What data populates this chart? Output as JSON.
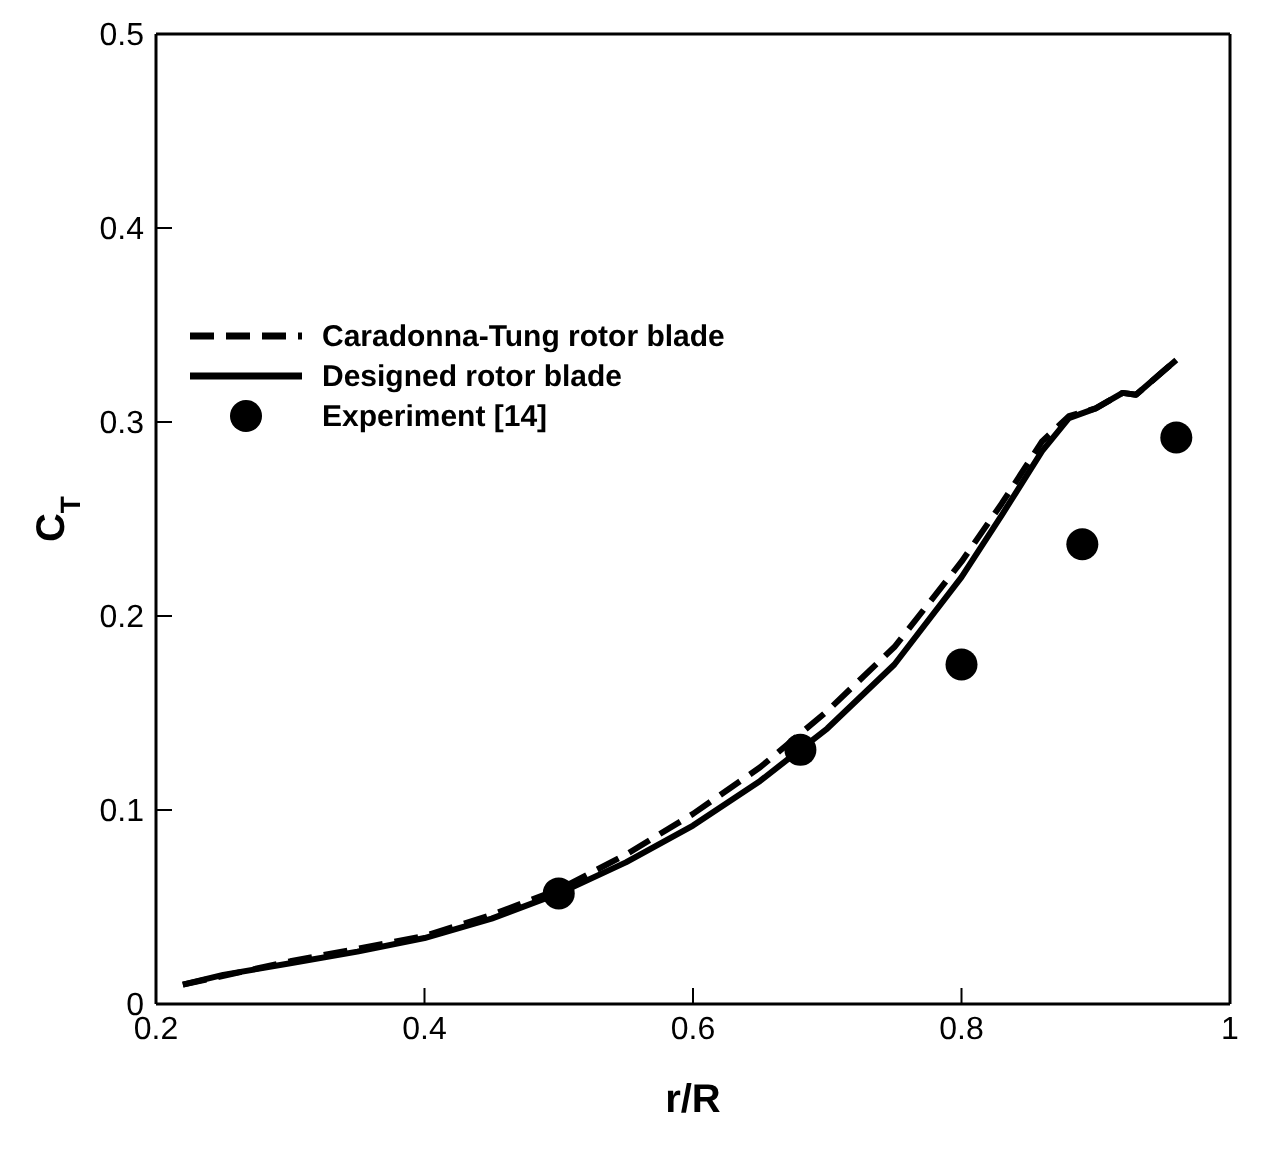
{
  "chart_data": {
    "type": "line",
    "xlabel": "r/R",
    "ylabel": "C$_{T}$",
    "xlim": [
      0.2,
      1
    ],
    "ylim": [
      0,
      0.5
    ],
    "xticks": [
      0.2,
      0.4,
      0.6,
      0.8,
      1
    ],
    "yticks": [
      0,
      0.1,
      0.2,
      0.3,
      0.4,
      0.5
    ],
    "legend": "left",
    "series": [
      {
        "name": "Caradonna-Tung rotor blade",
        "color": "#000000",
        "line_style": "dashed",
        "marker": "none",
        "x": [
          0.22,
          0.3,
          0.4,
          0.45,
          0.5,
          0.55,
          0.6,
          0.65,
          0.7,
          0.75,
          0.8,
          0.83,
          0.86,
          0.88,
          0.9,
          0.92,
          0.93,
          0.95,
          0.96
        ],
        "values": [
          0.01,
          0.022,
          0.035,
          0.046,
          0.059,
          0.077,
          0.098,
          0.122,
          0.151,
          0.184,
          0.228,
          0.258,
          0.29,
          0.303,
          0.307,
          0.315,
          0.314,
          0.326,
          0.332
        ]
      },
      {
        "name": "Designed rotor blade",
        "color": "#000000",
        "line_style": "solid",
        "marker": "none",
        "x": [
          0.22,
          0.25,
          0.3,
          0.35,
          0.4,
          0.45,
          0.5,
          0.55,
          0.6,
          0.65,
          0.7,
          0.75,
          0.8,
          0.83,
          0.86,
          0.88,
          0.9,
          0.92,
          0.93,
          0.95,
          0.96
        ],
        "values": [
          0.01,
          0.015,
          0.021,
          0.027,
          0.034,
          0.044,
          0.057,
          0.073,
          0.092,
          0.115,
          0.142,
          0.175,
          0.22,
          0.252,
          0.285,
          0.302,
          0.307,
          0.315,
          0.314,
          0.326,
          0.332
        ]
      },
      {
        "name": "Experiment [14]",
        "type": "scatter",
        "color": "#000000",
        "marker": "circle",
        "x": [
          0.5,
          0.68,
          0.8,
          0.89,
          0.96
        ],
        "values": [
          0.057,
          0.131,
          0.175,
          0.237,
          0.292
        ]
      }
    ]
  }
}
